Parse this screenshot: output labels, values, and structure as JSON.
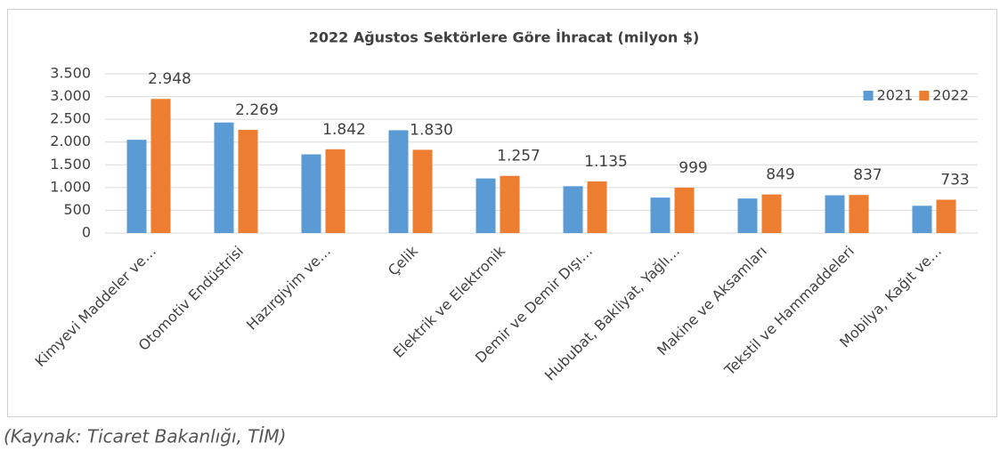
{
  "chart_data": {
    "type": "bar",
    "title": "2022 Ağustos Sektörlere Göre İhracat (milyon $)",
    "categories": [
      "Kimyevi Maddeler ve…",
      "Otomotiv Endüstrisi",
      "Hazırgiyim ve…",
      "Çelik",
      "Elektrik ve Elektronik",
      "Demir ve Demir Dışı…",
      "Hububat, Bakliyat, Yağlı…",
      "Makine ve Aksamları",
      "Tekstil ve Hammaddeleri",
      "Mobilya, Kağıt ve…"
    ],
    "series": [
      {
        "name": "2021",
        "color": "#5b9bd5",
        "values": [
          2050,
          2430,
          1730,
          2260,
          1200,
          1030,
          780,
          760,
          830,
          600
        ]
      },
      {
        "name": "2022",
        "color": "#ed7d31",
        "values": [
          2948,
          2269,
          1842,
          1830,
          1257,
          1135,
          999,
          849,
          837,
          733
        ],
        "value_labels": [
          "2.948",
          "2.269",
          "1.842",
          "1.830",
          "1.257",
          "1.135",
          "999",
          "849",
          "837",
          "733"
        ]
      }
    ],
    "ylim": [
      0,
      3500
    ],
    "yticks": [
      0,
      500,
      {
        "value": 1000,
        "label": "1.000"
      },
      {
        "value": 1500,
        "label": "1.500"
      },
      {
        "value": 2000,
        "label": "2.000"
      },
      {
        "value": 2500,
        "label": "2.500"
      },
      {
        "value": 3000,
        "label": "3.000"
      },
      {
        "value": 3500,
        "label": "3.500"
      }
    ],
    "grid": true,
    "legend": "top-right",
    "source": "(Kaynak: Ticaret Bakanlığı, TİM)"
  }
}
